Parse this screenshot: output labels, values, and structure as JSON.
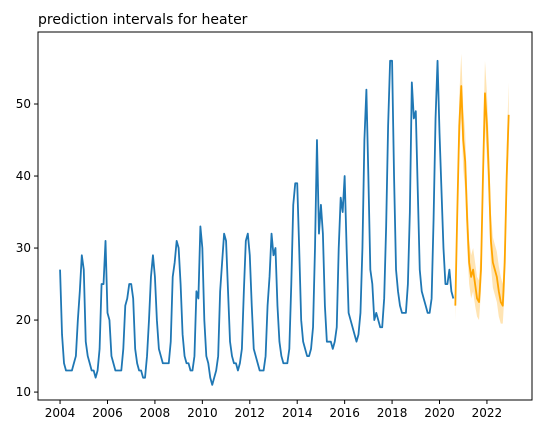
{
  "chart_data": {
    "type": "line",
    "title": "prediction intervals for heater",
    "xlim": [
      2003.07,
      2023.9
    ],
    "ylim": [
      8.9,
      60
    ],
    "xticks": [
      2004,
      2006,
      2008,
      2010,
      2012,
      2014,
      2016,
      2018,
      2020,
      2022
    ],
    "yticks": [
      10,
      20,
      30,
      40,
      50
    ],
    "series": [
      {
        "color": "#1f77b4",
        "x": [
          2004,
          2004.083,
          2004.167,
          2004.25,
          2004.333,
          2004.417,
          2004.5,
          2004.583,
          2004.667,
          2004.75,
          2004.833,
          2004.917,
          2005,
          2005.083,
          2005.167,
          2005.25,
          2005.333,
          2005.417,
          2005.5,
          2005.583,
          2005.667,
          2005.75,
          2005.833,
          2005.917,
          2006,
          2006.083,
          2006.167,
          2006.25,
          2006.333,
          2006.417,
          2006.5,
          2006.583,
          2006.667,
          2006.75,
          2006.833,
          2006.917,
          2007,
          2007.083,
          2007.167,
          2007.25,
          2007.333,
          2007.417,
          2007.5,
          2007.583,
          2007.667,
          2007.75,
          2007.833,
          2007.917,
          2008,
          2008.083,
          2008.167,
          2008.25,
          2008.333,
          2008.417,
          2008.5,
          2008.583,
          2008.667,
          2008.75,
          2008.833,
          2008.917,
          2009,
          2009.083,
          2009.167,
          2009.25,
          2009.333,
          2009.417,
          2009.5,
          2009.583,
          2009.667,
          2009.75,
          2009.833,
          2009.917,
          2010,
          2010.083,
          2010.167,
          2010.25,
          2010.333,
          2010.417,
          2010.5,
          2010.583,
          2010.667,
          2010.75,
          2010.833,
          2010.917,
          2011,
          2011.083,
          2011.167,
          2011.25,
          2011.333,
          2011.417,
          2011.5,
          2011.583,
          2011.667,
          2011.75,
          2011.833,
          2011.917,
          2012,
          2012.083,
          2012.167,
          2012.25,
          2012.333,
          2012.417,
          2012.5,
          2012.583,
          2012.667,
          2012.75,
          2012.833,
          2012.917,
          2013,
          2013.083,
          2013.167,
          2013.25,
          2013.333,
          2013.417,
          2013.5,
          2013.583,
          2013.667,
          2013.75,
          2013.833,
          2013.917,
          2014,
          2014.083,
          2014.167,
          2014.25,
          2014.333,
          2014.417,
          2014.5,
          2014.583,
          2014.667,
          2014.75,
          2014.833,
          2014.917,
          2015,
          2015.083,
          2015.167,
          2015.25,
          2015.333,
          2015.417,
          2015.5,
          2015.583,
          2015.667,
          2015.75,
          2015.833,
          2015.917,
          2016,
          2016.083,
          2016.167,
          2016.25,
          2016.333,
          2016.417,
          2016.5,
          2016.583,
          2016.667,
          2016.75,
          2016.833,
          2016.917,
          2017,
          2017.083,
          2017.167,
          2017.25,
          2017.333,
          2017.417,
          2017.5,
          2017.583,
          2017.667,
          2017.75,
          2017.833,
          2017.917,
          2018,
          2018.083,
          2018.167,
          2018.25,
          2018.333,
          2018.417,
          2018.5,
          2018.583,
          2018.667,
          2018.75,
          2018.833,
          2018.917,
          2019,
          2019.083,
          2019.167,
          2019.25,
          2019.333,
          2019.417,
          2019.5,
          2019.583,
          2019.667,
          2019.75,
          2019.833,
          2019.917,
          2020,
          2020.083,
          2020.167,
          2020.25,
          2020.333,
          2020.417,
          2020.5,
          2020.583
        ],
        "values": [
          27,
          18,
          14,
          13,
          13,
          13,
          13,
          14,
          15,
          20,
          24,
          29,
          27,
          17,
          15,
          14,
          13,
          13,
          12,
          13,
          16,
          25,
          25,
          31,
          21,
          20,
          15,
          14,
          13,
          13,
          13,
          13,
          16,
          22,
          23,
          25,
          25,
          23,
          16,
          14,
          13,
          13,
          12,
          12,
          15,
          20,
          26,
          29,
          26,
          20,
          16,
          15,
          14,
          14,
          14,
          14,
          17,
          26,
          28,
          31,
          30,
          25,
          18,
          15,
          14,
          14,
          13,
          13,
          15,
          24,
          23,
          33,
          30,
          20,
          15,
          14,
          12,
          11,
          12,
          13,
          15,
          24,
          28,
          32,
          31,
          24,
          17,
          15,
          14,
          14,
          13,
          14,
          16,
          24,
          31,
          32,
          29,
          22,
          16,
          15,
          14,
          13,
          13,
          13,
          15,
          22,
          26,
          32,
          29,
          30,
          22,
          17,
          15,
          14,
          14,
          14,
          16,
          25,
          36,
          39,
          39,
          30,
          20,
          17,
          16,
          15,
          15,
          16,
          19,
          30,
          45,
          32,
          36,
          32,
          22,
          17,
          17,
          17,
          16,
          17,
          19,
          30,
          37,
          35,
          40,
          30,
          21,
          20,
          19,
          18,
          17,
          18,
          21,
          30,
          45,
          52,
          40,
          27,
          25,
          20,
          21,
          20,
          19,
          19,
          23,
          33,
          47,
          56,
          56,
          40,
          27,
          24,
          22,
          21,
          21,
          21,
          25,
          35,
          53,
          48,
          49,
          38,
          27,
          24,
          23,
          22,
          21,
          21,
          23,
          34,
          48,
          56,
          46,
          38,
          30,
          25,
          25,
          27,
          24,
          23
        ]
      },
      {
        "color": "#ffa500",
        "band_color": "#ffe4b3",
        "x": [
          2020.667,
          2020.75,
          2020.833,
          2020.917,
          2021,
          2021.083,
          2021.167,
          2021.25,
          2021.333,
          2021.417,
          2021.5,
          2021.583,
          2021.667,
          2021.75,
          2021.833,
          2021.917,
          2022,
          2022.083,
          2022.167,
          2022.25,
          2022.333,
          2022.417,
          2022.5,
          2022.583,
          2022.667,
          2022.75,
          2022.833,
          2022.917
        ],
        "values": [
          22,
          35,
          47,
          52.5,
          45,
          42,
          34,
          28,
          26,
          27,
          25,
          23,
          22.5,
          27,
          40,
          51.5,
          47,
          40,
          31,
          28,
          27,
          26,
          24,
          22.5,
          22,
          28,
          40,
          48.5
        ],
        "lower": [
          20,
          32,
          43,
          48,
          41,
          38,
          30,
          25,
          23,
          24,
          22,
          20.5,
          20,
          24,
          36,
          47,
          42.5,
          36,
          27.5,
          24.5,
          23.5,
          22.5,
          20.5,
          19.5,
          19.5,
          24,
          36,
          44
        ],
        "upper": [
          24,
          38,
          51,
          57,
          49.5,
          46,
          38,
          31,
          29,
          30,
          28,
          26,
          25.5,
          30.5,
          44,
          56,
          51.5,
          44.5,
          35,
          31.5,
          30.5,
          29.5,
          27.5,
          26,
          25,
          32,
          44,
          53
        ]
      }
    ]
  }
}
